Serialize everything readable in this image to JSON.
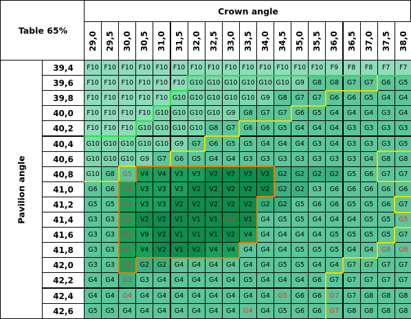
{
  "corner_label": "Table 65%",
  "x_axis_label": "Crown angle",
  "y_axis_label": "Pavilion angle",
  "chart_data": {
    "type": "table",
    "title": "",
    "corner": "Table 65%",
    "xlabel": "Crown angle",
    "ylabel": "Pavilion angle",
    "columns": [
      "29,0",
      "29,5",
      "30,0",
      "30,5",
      "31,0",
      "31,5",
      "32,0",
      "32,5",
      "33,0",
      "33,5",
      "34,0",
      "34,5",
      "35,0",
      "35,5",
      "36,0",
      "36,5",
      "37,0",
      "37,5",
      "38,0"
    ],
    "rows": [
      "39,4",
      "39,6",
      "39,8",
      "40,0",
      "40,2",
      "40,4",
      "40,6",
      "40,8",
      "41,0",
      "41,2",
      "41,4",
      "41,6",
      "41,8",
      "42,0",
      "42,2",
      "42,4",
      "42,6"
    ],
    "cells": [
      [
        "F10",
        "F10",
        "F10",
        "F10",
        "F10",
        "F10",
        "F10",
        "F10",
        "F10",
        "F10",
        "F10",
        "F10",
        "F10",
        "F10",
        "F9",
        "F8",
        "F8",
        "F7",
        "F7"
      ],
      [
        "F10",
        "F10",
        "F10",
        "F10",
        "F10",
        "F10",
        "G10",
        "G10",
        "G10",
        "G10",
        "G10",
        "G10",
        "G9",
        "G8",
        "G8",
        "G7",
        "G7",
        "G6",
        "G5"
      ],
      [
        "F10",
        "F10",
        "F10",
        "F10",
        "F10",
        "G10",
        "G10",
        "G10",
        "G10",
        "G10",
        "G9",
        "G8",
        "G7",
        "G7",
        "G6",
        "G6",
        "G5",
        "G4",
        "G4"
      ],
      [
        "F10",
        "F10",
        "F10",
        "F10",
        "G10",
        "G10",
        "G10",
        "G10",
        "G9",
        "G8",
        "G7",
        "G7",
        "G6",
        "G5",
        "G4",
        "G4",
        "G4",
        "G3",
        "G4"
      ],
      [
        "F10",
        "F10",
        "F10",
        "G10",
        "G10",
        "G10",
        "G10",
        "G8",
        "G7",
        "G6",
        "G6",
        "G5",
        "G4",
        "G4",
        "G4",
        "G3",
        "G3",
        "G3",
        "G3"
      ],
      [
        "G10",
        "G10",
        "G10",
        "G10",
        "G10",
        "G9",
        "G7",
        "G6",
        "G5",
        "G5",
        "G4",
        "G4",
        "G4",
        "G3",
        "G4",
        "G3",
        "G3",
        "G3",
        "G5"
      ],
      [
        "G10",
        "G10",
        "G10",
        "G9",
        "G7",
        "G6",
        "G5",
        "G4",
        "G4",
        "G3",
        "G3",
        "G3",
        "G3",
        "G3",
        "G3",
        "G3",
        "G4",
        "G8",
        "G8"
      ],
      [
        "G10",
        "G8",
        "G5",
        "V4",
        "V4",
        "V3",
        "V3",
        "V2",
        "V2",
        "V2",
        "V2",
        "G2",
        "G2",
        "G2",
        "G2",
        "G5",
        "G6",
        "G7",
        "G7"
      ],
      [
        "G6",
        "G6",
        "V4",
        "V3",
        "V3",
        "V3",
        "V2",
        "V2",
        "V2",
        "V2",
        "V2",
        "G2",
        "G2",
        "G3",
        "G6",
        "G6",
        "G6",
        "G6",
        "G6"
      ],
      [
        "G5",
        "G5",
        "V3",
        "V3",
        "V3",
        "V2",
        "V2",
        "V2",
        "V2",
        "V2",
        "G2",
        "G2",
        "G5",
        "G6",
        "G6",
        "G5",
        "G5",
        "G6",
        "G7"
      ],
      [
        "G3",
        "G3",
        "V2",
        "V2",
        "V2",
        "V1",
        "V1",
        "V1",
        "V1",
        "V1",
        "G4",
        "G5",
        "G5",
        "G4",
        "G4",
        "G4",
        "G5",
        "G5",
        "G5"
      ],
      [
        "G3",
        "G3",
        "V2",
        "V9",
        "V2",
        "V1",
        "V1",
        "V1",
        "V2",
        "V4",
        "G4",
        "G4",
        "G4",
        "G4",
        "G5",
        "G5",
        "G5",
        "G5",
        "G7"
      ],
      [
        "G3",
        "G3",
        "V2",
        "V4",
        "V2",
        "V1",
        "V2",
        "V4",
        "V4",
        "G4",
        "G4",
        "G4",
        "G5",
        "G5",
        "G5",
        "G4",
        "G4",
        "G8",
        "G8"
      ],
      [
        "G3",
        "G3",
        "V2",
        "G2",
        "G2",
        "G4",
        "G4",
        "G4",
        "G4",
        "G4",
        "G4",
        "G5",
        "G5",
        "G4",
        "G4",
        "G7",
        "G7",
        "G7",
        "G7"
      ],
      [
        "G4",
        "G4",
        "G2",
        "G3",
        "G4",
        "G4",
        "G4",
        "G4",
        "G4",
        "G5",
        "G4",
        "G4",
        "G4",
        "G6",
        "G7",
        "G7",
        "G7",
        "G7",
        "G7"
      ],
      [
        "G4",
        "G4",
        "G4",
        "G4",
        "G4",
        "G4",
        "G4",
        "G4",
        "G4",
        "G4",
        "G4",
        "G5",
        "G6",
        "G6",
        "G7",
        "G7",
        "G8",
        "G8",
        "G8"
      ],
      [
        "G5",
        "G5",
        "G4",
        "G4",
        "G4",
        "G4",
        "G4",
        "G4",
        "G4",
        "G4",
        "G4",
        "G5",
        "G6",
        "G6",
        "G7",
        "G8",
        "G8",
        "G8",
        "G8"
      ]
    ],
    "red_cells": [
      [
        7,
        2
      ],
      [
        8,
        2
      ],
      [
        9,
        2
      ],
      [
        10,
        2
      ],
      [
        11,
        2
      ],
      [
        12,
        2
      ],
      [
        13,
        2
      ],
      [
        14,
        2
      ],
      [
        15,
        2
      ],
      [
        10,
        8
      ],
      [
        10,
        18
      ],
      [
        12,
        17
      ],
      [
        12,
        18
      ],
      [
        15,
        11
      ],
      [
        15,
        14
      ],
      [
        16,
        9
      ],
      [
        16,
        14
      ]
    ],
    "palette": {
      "F": "#8fdcbd",
      "G_light": "#7ed6ae",
      "G": "#5cc59a",
      "G_dark": "#3db081",
      "V": "#1a9f5c",
      "V_core": "#0f8c4d",
      "red_text": "#e8302a",
      "boundary_green": "#22e63a",
      "boundary_yellow": "#e6e000",
      "boundary_orange": "#e87c00"
    }
  }
}
